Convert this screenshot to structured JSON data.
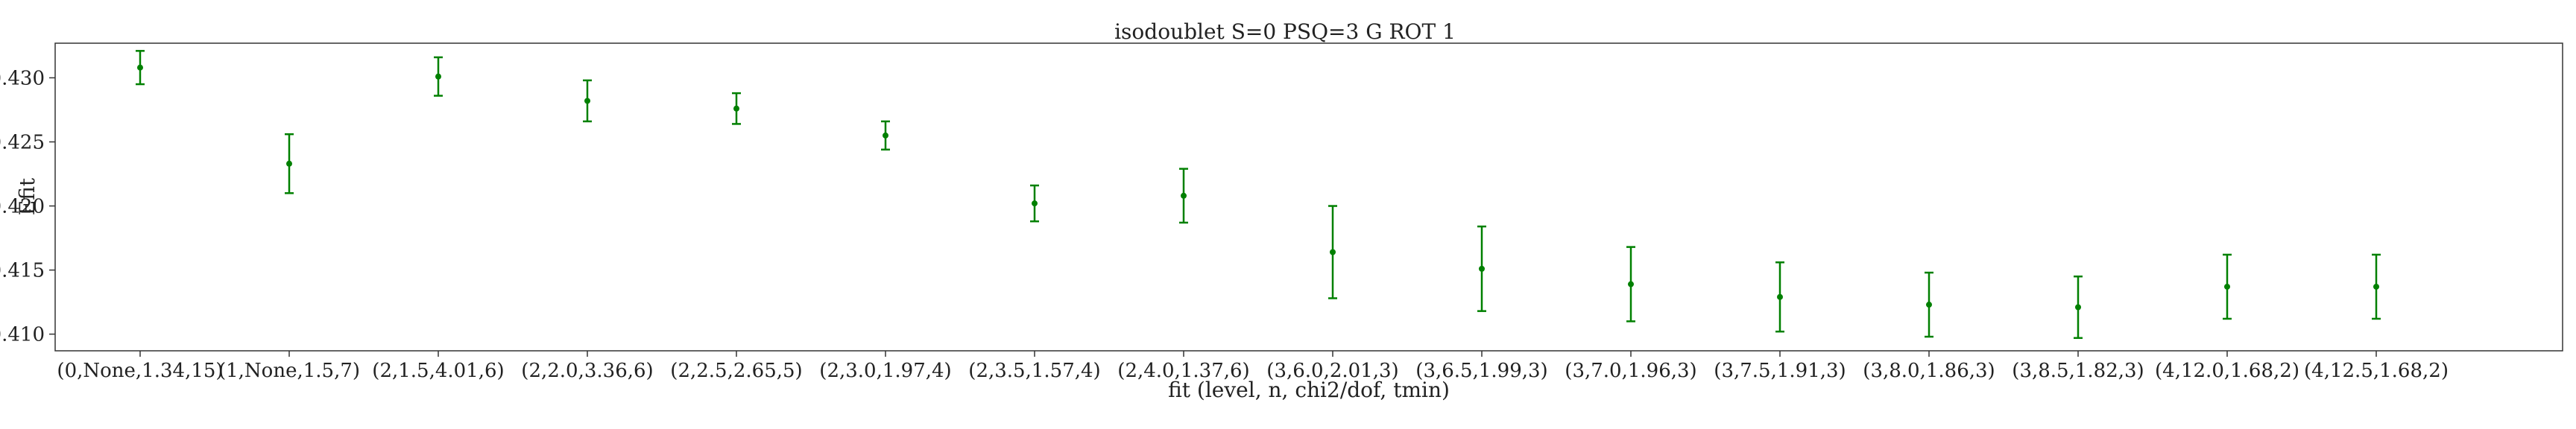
{
  "chart_data": {
    "type": "scatter",
    "title": "isodoublet S=0 PSQ=3 G ROT 1",
    "xlabel": "fit (level, n, chi2/dof, tmin)",
    "ylabel": "Efit",
    "ylim": [
      0.4087,
      0.4327
    ],
    "yticks": [
      "0.410",
      "0.415",
      "0.420",
      "0.425",
      "0.430"
    ],
    "grid": false,
    "categories": [
      "(0,None,1.34,15)",
      "(1,None,1.5,7)",
      "(2,1.5,4.01,6)",
      "(2,2.0,3.36,6)",
      "(2,2.5,2.65,5)",
      "(2,3.0,1.97,4)",
      "(2,3.5,1.57,4)",
      "(2,4.0,1.37,6)",
      "(3,6.0,2.01,3)",
      "(3,6.5,1.99,3)",
      "(3,7.0,1.96,3)",
      "(3,7.5,1.91,3)",
      "(3,8.0,1.86,3)",
      "(3,8.5,1.82,3)",
      "(4,12.0,1.68,2)",
      "(4,12.5,1.68,2)"
    ],
    "series": [
      {
        "values": [
          0.4308,
          0.4233,
          0.4301,
          0.4282,
          0.4276,
          0.4255,
          0.4202,
          0.4208,
          0.4164,
          0.4151,
          0.4139,
          0.4129,
          0.4123,
          0.4121,
          0.4137,
          0.4137
        ],
        "errors": [
          0.0013,
          0.0023,
          0.0015,
          0.0016,
          0.0012,
          0.0011,
          0.0014,
          0.0021,
          0.0036,
          0.0033,
          0.0029,
          0.0027,
          0.0025,
          0.0024,
          0.0025,
          0.0025
        ],
        "color": "#008000"
      }
    ]
  }
}
